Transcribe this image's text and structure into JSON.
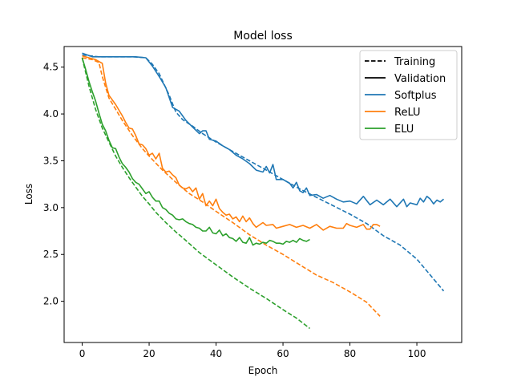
{
  "chart_data": {
    "type": "line",
    "title": "Model loss",
    "xlabel": "Epoch",
    "ylabel": "Loss",
    "xlim": [
      -5.4,
      113.4
    ],
    "ylim": [
      1.56,
      4.72
    ],
    "xticks": [
      0,
      20,
      40,
      60,
      80,
      100
    ],
    "yticks": [
      2.0,
      2.5,
      3.0,
      3.5,
      4.0,
      4.5
    ],
    "xtick_labels": [
      "0",
      "20",
      "40",
      "60",
      "80",
      "100"
    ],
    "ytick_labels": [
      "2.0",
      "2.5",
      "3.0",
      "3.5",
      "4.0",
      "4.5"
    ],
    "grid": false,
    "legend_position": "top-right",
    "legend": [
      {
        "label": "Training",
        "style": "dashed",
        "color": "#000000"
      },
      {
        "label": "Validation",
        "style": "solid",
        "color": "#000000"
      },
      {
        "label": "Softplus",
        "style": "solid",
        "color": "#1f77b4"
      },
      {
        "label": "ReLU",
        "style": "solid",
        "color": "#ff7f0e"
      },
      {
        "label": "ELU",
        "style": "solid",
        "color": "#2ca02c"
      }
    ],
    "series": [
      {
        "name": "Softplus",
        "kind": "Training",
        "color": "#1f77b4",
        "dashed": true,
        "points": [
          [
            0,
            4.63
          ],
          [
            5,
            4.61
          ],
          [
            10,
            4.61
          ],
          [
            15,
            4.61
          ],
          [
            19,
            4.6
          ],
          [
            21,
            4.53
          ],
          [
            23,
            4.43
          ],
          [
            26,
            4.2
          ],
          [
            28,
            4.02
          ],
          [
            30,
            3.94
          ],
          [
            33,
            3.87
          ],
          [
            36,
            3.79
          ],
          [
            40,
            3.7
          ],
          [
            45,
            3.6
          ],
          [
            50,
            3.5
          ],
          [
            55,
            3.4
          ],
          [
            60,
            3.3
          ],
          [
            65,
            3.2
          ],
          [
            70,
            3.11
          ],
          [
            75,
            3.02
          ],
          [
            80,
            2.93
          ],
          [
            85,
            2.83
          ],
          [
            90,
            2.7
          ],
          [
            95,
            2.6
          ],
          [
            100,
            2.45
          ],
          [
            108,
            2.11
          ]
        ]
      },
      {
        "name": "Softplus",
        "kind": "Validation",
        "color": "#1f77b4",
        "dashed": false,
        "points": [
          [
            0,
            4.65
          ],
          [
            3,
            4.61
          ],
          [
            8,
            4.61
          ],
          [
            12,
            4.61
          ],
          [
            16,
            4.61
          ],
          [
            19,
            4.6
          ],
          [
            21,
            4.51
          ],
          [
            23,
            4.4
          ],
          [
            25,
            4.28
          ],
          [
            27,
            4.07
          ],
          [
            29,
            4.03
          ],
          [
            31,
            3.93
          ],
          [
            33,
            3.86
          ],
          [
            35,
            3.79
          ],
          [
            36,
            3.82
          ],
          [
            37,
            3.82
          ],
          [
            38,
            3.73
          ],
          [
            40,
            3.71
          ],
          [
            42,
            3.66
          ],
          [
            44,
            3.62
          ],
          [
            46,
            3.56
          ],
          [
            48,
            3.52
          ],
          [
            50,
            3.47
          ],
          [
            52,
            3.4
          ],
          [
            54,
            3.38
          ],
          [
            55,
            3.44
          ],
          [
            56,
            3.37
          ],
          [
            57,
            3.46
          ],
          [
            58,
            3.3
          ],
          [
            60,
            3.3
          ],
          [
            62,
            3.26
          ],
          [
            63,
            3.21
          ],
          [
            64,
            3.27
          ],
          [
            65,
            3.18
          ],
          [
            66,
            3.16
          ],
          [
            67,
            3.21
          ],
          [
            68,
            3.13
          ],
          [
            70,
            3.14
          ],
          [
            72,
            3.1
          ],
          [
            74,
            3.13
          ],
          [
            76,
            3.09
          ],
          [
            78,
            3.06
          ],
          [
            80,
            3.07
          ],
          [
            82,
            3.04
          ],
          [
            84,
            3.12
          ],
          [
            86,
            3.03
          ],
          [
            88,
            3.08
          ],
          [
            90,
            3.03
          ],
          [
            92,
            3.09
          ],
          [
            94,
            3.01
          ],
          [
            96,
            3.09
          ],
          [
            97,
            3.01
          ],
          [
            98,
            3.05
          ],
          [
            100,
            3.03
          ],
          [
            101,
            3.1
          ],
          [
            102,
            3.06
          ],
          [
            103,
            3.12
          ],
          [
            104,
            3.09
          ],
          [
            105,
            3.04
          ],
          [
            106,
            3.08
          ],
          [
            107,
            3.06
          ],
          [
            108,
            3.09
          ]
        ]
      },
      {
        "name": "ReLU",
        "kind": "Training",
        "color": "#ff7f0e",
        "dashed": true,
        "points": [
          [
            0,
            4.6
          ],
          [
            3,
            4.58
          ],
          [
            5,
            4.55
          ],
          [
            6,
            4.4
          ],
          [
            8,
            4.17
          ],
          [
            10,
            4.05
          ],
          [
            12,
            3.93
          ],
          [
            15,
            3.77
          ],
          [
            18,
            3.63
          ],
          [
            20,
            3.55
          ],
          [
            24,
            3.4
          ],
          [
            28,
            3.27
          ],
          [
            32,
            3.15
          ],
          [
            36,
            3.06
          ],
          [
            40,
            2.96
          ],
          [
            45,
            2.84
          ],
          [
            50,
            2.71
          ],
          [
            55,
            2.6
          ],
          [
            60,
            2.5
          ],
          [
            65,
            2.39
          ],
          [
            70,
            2.28
          ],
          [
            75,
            2.2
          ],
          [
            80,
            2.1
          ],
          [
            85,
            1.99
          ],
          [
            89,
            1.84
          ]
        ]
      },
      {
        "name": "ReLU",
        "kind": "Validation",
        "color": "#ff7f0e",
        "dashed": false,
        "points": [
          [
            0,
            4.62
          ],
          [
            2,
            4.6
          ],
          [
            4,
            4.58
          ],
          [
            6,
            4.54
          ],
          [
            7,
            4.33
          ],
          [
            8,
            4.2
          ],
          [
            10,
            4.1
          ],
          [
            12,
            3.98
          ],
          [
            13,
            3.91
          ],
          [
            14,
            3.85
          ],
          [
            15,
            3.84
          ],
          [
            16,
            3.77
          ],
          [
            17,
            3.68
          ],
          [
            18,
            3.67
          ],
          [
            19,
            3.63
          ],
          [
            20,
            3.56
          ],
          [
            21,
            3.58
          ],
          [
            22,
            3.52
          ],
          [
            23,
            3.58
          ],
          [
            24,
            3.42
          ],
          [
            25,
            3.38
          ],
          [
            26,
            3.39
          ],
          [
            27,
            3.35
          ],
          [
            28,
            3.32
          ],
          [
            29,
            3.24
          ],
          [
            30,
            3.21
          ],
          [
            31,
            3.2
          ],
          [
            32,
            3.22
          ],
          [
            33,
            3.17
          ],
          [
            34,
            3.21
          ],
          [
            35,
            3.09
          ],
          [
            36,
            3.15
          ],
          [
            37,
            3.02
          ],
          [
            38,
            3.07
          ],
          [
            39,
            3.02
          ],
          [
            40,
            3.09
          ],
          [
            41,
            2.99
          ],
          [
            42,
            2.95
          ],
          [
            43,
            2.92
          ],
          [
            44,
            2.93
          ],
          [
            45,
            2.88
          ],
          [
            46,
            2.9
          ],
          [
            47,
            2.85
          ],
          [
            48,
            2.91
          ],
          [
            49,
            2.85
          ],
          [
            50,
            2.89
          ],
          [
            51,
            2.83
          ],
          [
            52,
            2.79
          ],
          [
            54,
            2.84
          ],
          [
            55,
            2.81
          ],
          [
            57,
            2.82
          ],
          [
            58,
            2.78
          ],
          [
            60,
            2.8
          ],
          [
            62,
            2.82
          ],
          [
            64,
            2.79
          ],
          [
            66,
            2.81
          ],
          [
            68,
            2.78
          ],
          [
            70,
            2.82
          ],
          [
            72,
            2.76
          ],
          [
            74,
            2.8
          ],
          [
            76,
            2.78
          ],
          [
            78,
            2.78
          ],
          [
            79,
            2.83
          ],
          [
            80,
            2.81
          ],
          [
            82,
            2.79
          ],
          [
            84,
            2.82
          ],
          [
            85,
            2.77
          ],
          [
            86,
            2.77
          ],
          [
            87,
            2.82
          ],
          [
            88,
            2.82
          ],
          [
            89,
            2.8
          ]
        ]
      },
      {
        "name": "ELU",
        "kind": "Training",
        "color": "#2ca02c",
        "dashed": true,
        "points": [
          [
            0,
            4.6
          ],
          [
            2,
            4.3
          ],
          [
            4,
            4.05
          ],
          [
            6,
            3.85
          ],
          [
            8,
            3.7
          ],
          [
            10,
            3.55
          ],
          [
            12,
            3.43
          ],
          [
            14,
            3.32
          ],
          [
            16,
            3.22
          ],
          [
            18,
            3.12
          ],
          [
            20,
            3.04
          ],
          [
            22,
            2.95
          ],
          [
            25,
            2.84
          ],
          [
            28,
            2.74
          ],
          [
            30,
            2.68
          ],
          [
            35,
            2.52
          ],
          [
            40,
            2.39
          ],
          [
            45,
            2.26
          ],
          [
            50,
            2.14
          ],
          [
            55,
            2.03
          ],
          [
            60,
            1.91
          ],
          [
            64,
            1.82
          ],
          [
            68,
            1.71
          ]
        ]
      },
      {
        "name": "ELU",
        "kind": "Validation",
        "color": "#2ca02c",
        "dashed": false,
        "points": [
          [
            0,
            4.6
          ],
          [
            1,
            4.48
          ],
          [
            2,
            4.35
          ],
          [
            3,
            4.24
          ],
          [
            4,
            4.14
          ],
          [
            5,
            4.01
          ],
          [
            6,
            3.89
          ],
          [
            7,
            3.82
          ],
          [
            8,
            3.72
          ],
          [
            9,
            3.64
          ],
          [
            10,
            3.63
          ],
          [
            11,
            3.54
          ],
          [
            12,
            3.47
          ],
          [
            13,
            3.43
          ],
          [
            14,
            3.38
          ],
          [
            15,
            3.31
          ],
          [
            16,
            3.27
          ],
          [
            17,
            3.25
          ],
          [
            18,
            3.2
          ],
          [
            19,
            3.15
          ],
          [
            20,
            3.17
          ],
          [
            21,
            3.11
          ],
          [
            22,
            3.07
          ],
          [
            23,
            3.07
          ],
          [
            24,
            3.0
          ],
          [
            25,
            2.98
          ],
          [
            26,
            2.94
          ],
          [
            27,
            2.92
          ],
          [
            28,
            2.88
          ],
          [
            29,
            2.87
          ],
          [
            30,
            2.88
          ],
          [
            31,
            2.85
          ],
          [
            32,
            2.83
          ],
          [
            33,
            2.82
          ],
          [
            34,
            2.79
          ],
          [
            35,
            2.78
          ],
          [
            36,
            2.75
          ],
          [
            37,
            2.75
          ],
          [
            38,
            2.79
          ],
          [
            39,
            2.73
          ],
          [
            40,
            2.72
          ],
          [
            41,
            2.76
          ],
          [
            42,
            2.7
          ],
          [
            43,
            2.72
          ],
          [
            44,
            2.68
          ],
          [
            45,
            2.67
          ],
          [
            46,
            2.64
          ],
          [
            47,
            2.68
          ],
          [
            48,
            2.63
          ],
          [
            49,
            2.62
          ],
          [
            50,
            2.68
          ],
          [
            51,
            2.6
          ],
          [
            52,
            2.62
          ],
          [
            53,
            2.61
          ],
          [
            54,
            2.63
          ],
          [
            55,
            2.62
          ],
          [
            56,
            2.65
          ],
          [
            57,
            2.64
          ],
          [
            58,
            2.62
          ],
          [
            59,
            2.62
          ],
          [
            60,
            2.61
          ],
          [
            61,
            2.64
          ],
          [
            62,
            2.63
          ],
          [
            63,
            2.65
          ],
          [
            64,
            2.63
          ],
          [
            65,
            2.67
          ],
          [
            66,
            2.65
          ],
          [
            67,
            2.64
          ],
          [
            68,
            2.66
          ]
        ]
      }
    ]
  }
}
